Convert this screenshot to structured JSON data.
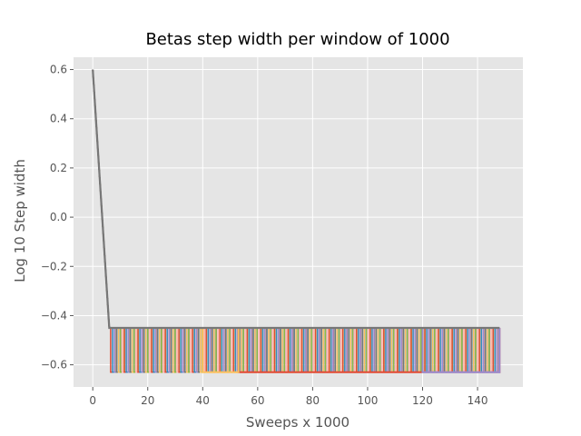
{
  "chart_data": {
    "type": "line",
    "title": "Betas step width per window of 1000",
    "xlabel": "Sweeps x 1000",
    "ylabel": "Log 10 Step width",
    "xlim": [
      -7,
      156.5
    ],
    "ylim": [
      -0.69,
      0.65
    ],
    "xticks": [
      0,
      20,
      40,
      60,
      80,
      100,
      120,
      140
    ],
    "yticks": [
      -0.6,
      -0.4,
      -0.2,
      0.0,
      0.2,
      0.4,
      0.6
    ],
    "xtick_labels": [
      "0",
      "20",
      "40",
      "60",
      "80",
      "100",
      "120",
      "140"
    ],
    "ytick_labels": [
      "−0.6",
      "−0.4",
      "−0.2",
      "0.0",
      "0.2",
      "0.4",
      "0.6"
    ],
    "grid": true,
    "style": "ggplot",
    "background_color": "#E5E5E5",
    "grid_color": "#FFFFFF",
    "color_cycle": [
      "#E24A33",
      "#348ABD",
      "#988ED5",
      "#777777",
      "#FBC15E",
      "#8EBA42",
      "#FFB5B8"
    ],
    "series_count": 200,
    "descent": {
      "x": [
        0,
        6
      ],
      "y": [
        0.6,
        -0.45
      ]
    },
    "high_level": -0.45,
    "low_level": -0.63,
    "x_max": 148,
    "long_segments": [
      {
        "color": "#E24A33",
        "x_start": 53,
        "x_end": 148
      },
      {
        "color": "#FBC15E",
        "x_start": 40,
        "x_end": 53
      },
      {
        "color": "#988ED5",
        "x_start": 120,
        "x_end": 148
      },
      {
        "color": "#777777",
        "x_start": 6,
        "x_end": 148,
        "level": "high"
      }
    ]
  }
}
